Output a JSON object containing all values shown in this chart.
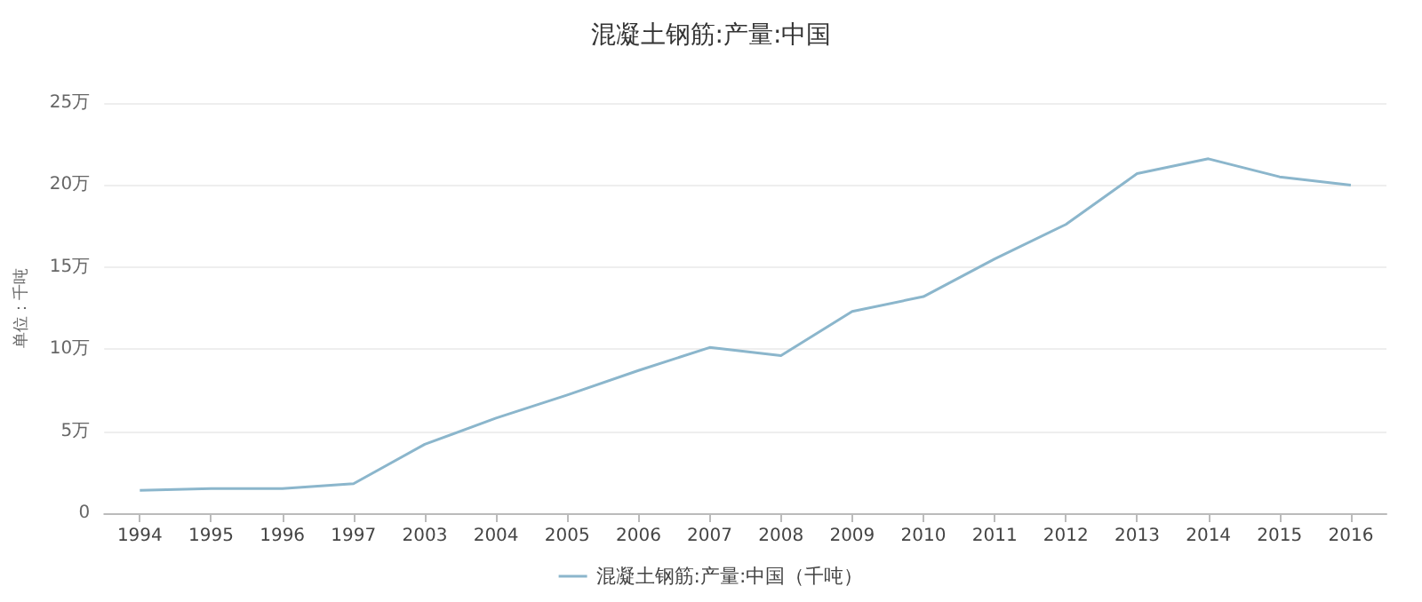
{
  "chart_data": {
    "type": "line",
    "title": "混凝土钢筋:产量:中国",
    "ylabel": "单位：千吨",
    "categories": [
      "1994",
      "1995",
      "1996",
      "1997",
      "2003",
      "2004",
      "2005",
      "2006",
      "2007",
      "2008",
      "2009",
      "2010",
      "2011",
      "2012",
      "2013",
      "2014",
      "2015",
      "2016"
    ],
    "series": [
      {
        "name": "混凝土钢筋:产量:中国（千吨）",
        "color": "#8bb6cc",
        "values": [
          1.4,
          1.5,
          1.5,
          1.8,
          4.2,
          5.8,
          7.2,
          8.7,
          10.1,
          9.6,
          12.3,
          13.2,
          15.5,
          17.6,
          20.7,
          21.6,
          20.5,
          20
        ]
      }
    ],
    "ylim": [
      0,
      25
    ],
    "yticks": [
      0,
      {
        "value": 5,
        "label": "5万"
      },
      {
        "value": 10,
        "label": "10万"
      },
      {
        "value": 15,
        "label": "15万"
      },
      {
        "value": 20,
        "label": "20万"
      },
      {
        "value": 25,
        "label": "25万"
      }
    ],
    "grid": "y",
    "legend": "bottom",
    "marker": "none",
    "line_style": "solid"
  }
}
